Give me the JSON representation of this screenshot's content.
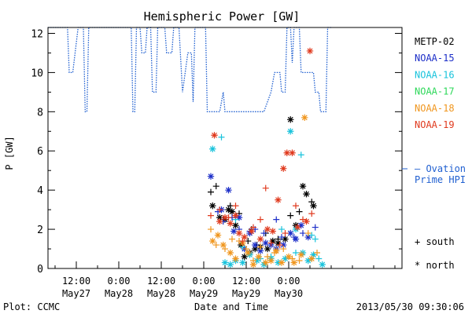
{
  "chart_data": {
    "type": "scatter",
    "title": "Hemispheric Power [GW]",
    "xlabel": "Date and Time",
    "ylabel": "P [GW]",
    "ylim": [
      0,
      12.3
    ],
    "yticks": [
      0,
      2,
      4,
      6,
      8,
      10,
      12
    ],
    "xlim_hours": [
      0,
      100
    ],
    "xticks": [
      {
        "h": 8,
        "line1": "12:00",
        "line2": "May27"
      },
      {
        "h": 20,
        "line1": "0:00",
        "line2": "May28"
      },
      {
        "h": 32,
        "line1": "12:00",
        "line2": "May28"
      },
      {
        "h": 44,
        "line1": "0:00",
        "line2": "May29"
      },
      {
        "h": 56,
        "line1": "12:00",
        "line2": "May29"
      },
      {
        "h": 68,
        "line1": "0:00",
        "line2": "May30"
      }
    ],
    "grid": false,
    "legend": {
      "position": "right",
      "items": [
        {
          "label": "METP-02",
          "color": "#000000"
        },
        {
          "label": "NOAA-15",
          "color": "#1c2ec8"
        },
        {
          "label": "NOAA-16",
          "color": "#19c3dc"
        },
        {
          "label": "NOAA-17",
          "color": "#2ed85a"
        },
        {
          "label": "NOAA-18",
          "color": "#f0961e"
        },
        {
          "label": "NOAA-19",
          "color": "#e03a1e"
        }
      ],
      "ovation_label": "— Ovation",
      "ovation_label2": "Prime HPI",
      "south_label": "+ south",
      "north_label": "* north"
    },
    "footer_left": "Plot: CCMC",
    "footer_right": "2013/05/30 09:30:06",
    "ovation_hpi": {
      "name": "Ovation Prime HPI",
      "color": "#1f5fd0",
      "points": [
        [
          0,
          12.3
        ],
        [
          5.5,
          12.3
        ],
        [
          6,
          10
        ],
        [
          7,
          10
        ],
        [
          8.5,
          12.3
        ],
        [
          10,
          12.3
        ],
        [
          10.5,
          8
        ],
        [
          11,
          8
        ],
        [
          11.5,
          12.3
        ],
        [
          23.5,
          12.3
        ],
        [
          24,
          8
        ],
        [
          24.5,
          8
        ],
        [
          25,
          12.3
        ],
        [
          26,
          12.3
        ],
        [
          26.5,
          11
        ],
        [
          27.5,
          11
        ],
        [
          28,
          12.3
        ],
        [
          29,
          12.3
        ],
        [
          29.5,
          9
        ],
        [
          30.5,
          9
        ],
        [
          31,
          12.3
        ],
        [
          33,
          12.3
        ],
        [
          33.5,
          11
        ],
        [
          35,
          11
        ],
        [
          35.5,
          12.3
        ],
        [
          37,
          12.3
        ],
        [
          38,
          9
        ],
        [
          39.5,
          11
        ],
        [
          40.5,
          11
        ],
        [
          41,
          8.5
        ],
        [
          41.5,
          12.3
        ],
        [
          44.5,
          12.3
        ],
        [
          45,
          8
        ],
        [
          48.5,
          8
        ],
        [
          49.5,
          9
        ],
        [
          50,
          8
        ],
        [
          61,
          8
        ],
        [
          62,
          8.5
        ],
        [
          63,
          9
        ],
        [
          64,
          10
        ],
        [
          65.5,
          10
        ],
        [
          66,
          9
        ],
        [
          67,
          9
        ],
        [
          67.5,
          12.3
        ],
        [
          68.5,
          12.3
        ],
        [
          69,
          10.5
        ],
        [
          69.5,
          12.3
        ],
        [
          71,
          12.3
        ],
        [
          71.5,
          10
        ],
        [
          73,
          10
        ],
        [
          74,
          10
        ],
        [
          75,
          10
        ],
        [
          75.5,
          9
        ],
        [
          76.5,
          9
        ],
        [
          77,
          8
        ],
        [
          78.5,
          8
        ],
        [
          79,
          12.3
        ],
        [
          80,
          12.3
        ]
      ]
    },
    "series": [
      {
        "name": "METP-02",
        "color": "#000000",
        "south": [
          [
            46,
            3.9
          ],
          [
            47.5,
            4.2
          ],
          [
            49.5,
            2.5
          ],
          [
            51.5,
            3.2
          ],
          [
            54,
            2.8
          ],
          [
            56.5,
            1.4
          ],
          [
            57.5,
            2.0
          ],
          [
            59,
            1.2
          ],
          [
            61.5,
            1.8
          ],
          [
            65,
            1.5
          ],
          [
            68.5,
            2.7
          ],
          [
            71,
            2.9
          ],
          [
            74.5,
            3.4
          ]
        ],
        "north": [
          [
            46.5,
            3.2
          ],
          [
            48.5,
            2.6
          ],
          [
            50,
            2.5
          ],
          [
            51,
            3.0
          ],
          [
            52,
            2.9
          ],
          [
            53,
            2.2
          ],
          [
            54.5,
            1.2
          ],
          [
            55.5,
            0.6
          ],
          [
            57,
            0.8
          ],
          [
            58.5,
            1.0
          ],
          [
            60,
            1.1
          ],
          [
            62,
            1.0
          ],
          [
            63.5,
            1.4
          ],
          [
            65,
            1.3
          ],
          [
            67,
            1.5
          ],
          [
            68.5,
            7.6
          ],
          [
            70,
            2.2
          ],
          [
            72,
            4.2
          ],
          [
            73,
            3.8
          ],
          [
            75,
            3.2
          ]
        ]
      },
      {
        "name": "NOAA-15",
        "color": "#1c2ec8",
        "south": [
          [
            48,
            2.9
          ],
          [
            49.5,
            2.4
          ],
          [
            52,
            2.6
          ],
          [
            54,
            2.0
          ],
          [
            57,
            1.9
          ],
          [
            58.5,
            2.0
          ],
          [
            61,
            1.8
          ],
          [
            64.5,
            2.5
          ],
          [
            66,
            1.6
          ],
          [
            69.5,
            1.6
          ],
          [
            72,
            1.8
          ],
          [
            75.5,
            2.1
          ]
        ],
        "north": [
          [
            46,
            4.7
          ],
          [
            49,
            3.0
          ],
          [
            51,
            4.0
          ],
          [
            52.5,
            1.9
          ],
          [
            54,
            2.6
          ],
          [
            55.5,
            1.0
          ],
          [
            57,
            1.8
          ],
          [
            58.5,
            1.2
          ],
          [
            60,
            0.9
          ],
          [
            61.5,
            1.3
          ],
          [
            63,
            1.2
          ],
          [
            64.5,
            1.0
          ],
          [
            66.5,
            1.2
          ],
          [
            68.5,
            1.8
          ],
          [
            70,
            1.5
          ],
          [
            71.5,
            2.2
          ],
          [
            73.5,
            1.6
          ]
        ]
      },
      {
        "name": "NOAA-16",
        "color": "#19c3dc",
        "south": [
          [
            49,
            6.7
          ],
          [
            53,
            2.5
          ],
          [
            55,
            1.1
          ],
          [
            60,
            0.5
          ],
          [
            63,
            0.6
          ],
          [
            66,
            2.0
          ],
          [
            70,
            0.8
          ],
          [
            71.5,
            5.8
          ],
          [
            74.5,
            1.7
          ],
          [
            75.5,
            1.5
          ],
          [
            76.5,
            0.5
          ]
        ],
        "north": [
          [
            46.5,
            6.1
          ],
          [
            50,
            0.3
          ],
          [
            51.5,
            0.2
          ],
          [
            53,
            0.4
          ],
          [
            55,
            0.3
          ],
          [
            57,
            0.7
          ],
          [
            59,
            0.4
          ],
          [
            61,
            0.2
          ],
          [
            63,
            0.5
          ],
          [
            65,
            0.3
          ],
          [
            67,
            0.5
          ],
          [
            68.5,
            7.0
          ],
          [
            70,
            2.0
          ],
          [
            72,
            0.8
          ],
          [
            73.5,
            0.4
          ],
          [
            75,
            0.7
          ],
          [
            77.5,
            0.2
          ]
        ]
      },
      {
        "name": "NOAA-18",
        "color": "#f0961e",
        "south": [
          [
            46,
            2.0
          ],
          [
            47.5,
            1.2
          ],
          [
            50,
            1.0
          ],
          [
            52,
            1.5
          ],
          [
            54,
            1.4
          ],
          [
            56,
            1.0
          ],
          [
            58,
            0.4
          ],
          [
            60,
            1.1
          ],
          [
            62,
            0.6
          ],
          [
            64,
            0.8
          ],
          [
            66.5,
            1.0
          ],
          [
            69,
            0.5
          ],
          [
            71,
            0.4
          ],
          [
            73.5,
            1.8
          ],
          [
            76,
            0.8
          ]
        ],
        "north": [
          [
            46.5,
            1.4
          ],
          [
            48,
            1.7
          ],
          [
            49.5,
            1.2
          ],
          [
            51.5,
            0.8
          ],
          [
            53,
            0.5
          ],
          [
            55,
            1.3
          ],
          [
            56.5,
            0.8
          ],
          [
            58,
            0.2
          ],
          [
            59.5,
            0.6
          ],
          [
            61.5,
            0.3
          ],
          [
            63,
            0.4
          ],
          [
            64.5,
            0.9
          ],
          [
            66,
            0.3
          ],
          [
            68,
            0.6
          ],
          [
            69.5,
            0.3
          ],
          [
            71.5,
            0.7
          ],
          [
            72.5,
            7.7
          ],
          [
            74.5,
            0.5
          ]
        ]
      },
      {
        "name": "NOAA-19",
        "color": "#e03a1e",
        "south": [
          [
            46,
            2.7
          ],
          [
            48.5,
            3.0
          ],
          [
            51,
            2.6
          ],
          [
            53,
            3.2
          ],
          [
            55,
            1.4
          ],
          [
            58,
            2.1
          ],
          [
            60,
            2.5
          ],
          [
            61.5,
            4.1
          ],
          [
            63,
            1.3
          ],
          [
            65.5,
            1.2
          ],
          [
            67,
            1.8
          ],
          [
            70,
            3.2
          ],
          [
            72,
            2.5
          ],
          [
            74.5,
            2.8
          ]
        ],
        "north": [
          [
            47,
            6.8
          ],
          [
            48.5,
            2.4
          ],
          [
            50,
            2.6
          ],
          [
            51.5,
            2.3
          ],
          [
            53,
            2.7
          ],
          [
            54,
            1.8
          ],
          [
            55.5,
            1.6
          ],
          [
            57.5,
            1.9
          ],
          [
            60,
            1.5
          ],
          [
            62,
            2.0
          ],
          [
            63.5,
            1.9
          ],
          [
            65,
            3.5
          ],
          [
            66.5,
            5.1
          ],
          [
            67.5,
            5.9
          ],
          [
            69,
            5.9
          ],
          [
            70.5,
            2.1
          ],
          [
            73,
            2.4
          ],
          [
            74,
            11.1
          ]
        ]
      }
    ]
  }
}
